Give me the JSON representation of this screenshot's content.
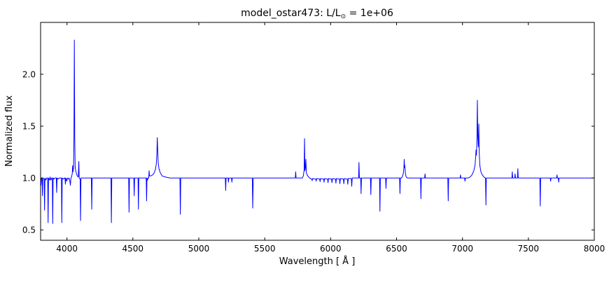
{
  "figure": {
    "title_prefix": "model_ostar473: L/L",
    "title_sun_symbol": "⊙",
    "title_suffix": " = 1e+06",
    "xlabel": "Wavelength [ Å ]",
    "ylabel": "Normalized flux"
  },
  "chart_data": {
    "type": "line",
    "title": "model_ostar473: L/L⊙ = 1e+06",
    "xlabel": "Wavelength [ Å ]",
    "ylabel": "Normalized flux",
    "xlim": [
      3800,
      8000
    ],
    "ylim": [
      0.4,
      2.5
    ],
    "x_ticks": [
      4000,
      4500,
      5000,
      5500,
      6000,
      6500,
      7000,
      7500,
      8000
    ],
    "y_ticks": [
      0.5,
      1.0,
      1.5,
      2.0
    ],
    "y_tick_labels": [
      "0.5",
      "1.0",
      "1.5",
      "2.0"
    ],
    "grid": false,
    "legend": false,
    "line_color": "#0000ff",
    "axis_color": "#000000",
    "background_color": "#ffffff",
    "series": [
      {
        "name": "model_ostar473 normalized spectrum",
        "points": [
          [
            3800,
            0.97
          ],
          [
            3803,
            0.93
          ],
          [
            3806,
            1
          ],
          [
            3811,
            0.99
          ],
          [
            3814,
            0.83
          ],
          [
            3817,
            1
          ],
          [
            3827,
            0.99
          ],
          [
            3830,
            0.69
          ],
          [
            3833,
            1
          ],
          [
            3840,
            0.98
          ],
          [
            3846,
            1
          ],
          [
            3854,
            1
          ],
          [
            3857,
            0.57
          ],
          [
            3860,
            1
          ],
          [
            3868,
            0.98
          ],
          [
            3872,
            1.01
          ],
          [
            3878,
            0.98
          ],
          [
            3884,
            1
          ],
          [
            3889,
            1
          ],
          [
            3892,
            0.56
          ],
          [
            3895,
            1
          ],
          [
            3902,
            0.99
          ],
          [
            3908,
            1
          ],
          [
            3919,
            1
          ],
          [
            3922,
            0.86
          ],
          [
            3925,
            1
          ],
          [
            3932,
            0.99
          ],
          [
            3940,
            1
          ],
          [
            3958,
            1
          ],
          [
            3961,
            0.57
          ],
          [
            3964,
            1
          ],
          [
            3972,
            0.99
          ],
          [
            3980,
            1
          ],
          [
            3985,
            1
          ],
          [
            3988,
            0.94
          ],
          [
            3991,
            1
          ],
          [
            3998,
            0.97
          ],
          [
            4003,
            1
          ],
          [
            4010,
            0.99
          ],
          [
            4016,
            1
          ],
          [
            4022,
            0.97
          ],
          [
            4026,
            0.93
          ],
          [
            4030,
            1
          ],
          [
            4034,
            1.01
          ],
          [
            4040,
            1.04
          ],
          [
            4043,
            1.12
          ],
          [
            4046,
            1.06
          ],
          [
            4050,
            1.1
          ],
          [
            4053,
            1.4
          ],
          [
            4056,
            2.33
          ],
          [
            4059,
            1.4
          ],
          [
            4062,
            1.12
          ],
          [
            4065,
            1.08
          ],
          [
            4070,
            1.05
          ],
          [
            4078,
            1.02
          ],
          [
            4086,
            1.01
          ],
          [
            4090,
            1.16
          ],
          [
            4093,
            1
          ],
          [
            4100,
            0.99
          ],
          [
            4103,
            0.59
          ],
          [
            4106,
            1
          ],
          [
            4115,
            1
          ],
          [
            4150,
            1
          ],
          [
            4185,
            1
          ],
          [
            4188,
            0.7
          ],
          [
            4191,
            1
          ],
          [
            4240,
            1
          ],
          [
            4300,
            1
          ],
          [
            4334,
            1
          ],
          [
            4337,
            0.57
          ],
          [
            4340,
            1
          ],
          [
            4400,
            1
          ],
          [
            4440,
            1
          ],
          [
            4468,
            1
          ],
          [
            4471,
            0.67
          ],
          [
            4474,
            1
          ],
          [
            4507,
            1
          ],
          [
            4510,
            0.83
          ],
          [
            4513,
            1
          ],
          [
            4539,
            1
          ],
          [
            4542,
            0.7
          ],
          [
            4545,
            1
          ],
          [
            4565,
            1
          ],
          [
            4585,
            1
          ],
          [
            4601,
            1
          ],
          [
            4604,
            0.78
          ],
          [
            4607,
            1
          ],
          [
            4611,
            0.98
          ],
          [
            4615,
            1
          ],
          [
            4620,
            1
          ],
          [
            4623,
            1.07
          ],
          [
            4626,
            1.02
          ],
          [
            4635,
            1.02
          ],
          [
            4650,
            1.03
          ],
          [
            4662,
            1.05
          ],
          [
            4672,
            1.09
          ],
          [
            4678,
            1.14
          ],
          [
            4682,
            1.24
          ],
          [
            4685,
            1.39
          ],
          [
            4688,
            1.28
          ],
          [
            4692,
            1.15
          ],
          [
            4698,
            1.09
          ],
          [
            4708,
            1.05
          ],
          [
            4722,
            1.02
          ],
          [
            4745,
            1.01
          ],
          [
            4780,
            1
          ],
          [
            4857,
            1
          ],
          [
            4860,
            0.65
          ],
          [
            4863,
            1
          ],
          [
            4950,
            1
          ],
          [
            5080,
            1
          ],
          [
            5201,
            1
          ],
          [
            5204,
            0.88
          ],
          [
            5207,
            1
          ],
          [
            5222,
            1
          ],
          [
            5225,
            0.96
          ],
          [
            5228,
            1
          ],
          [
            5248,
            1
          ],
          [
            5251,
            0.96
          ],
          [
            5254,
            1
          ],
          [
            5320,
            1
          ],
          [
            5406,
            1
          ],
          [
            5409,
            0.71
          ],
          [
            5413,
            1
          ],
          [
            5520,
            1
          ],
          [
            5650,
            1
          ],
          [
            5732,
            1
          ],
          [
            5735,
            1.06
          ],
          [
            5738,
            1
          ],
          [
            5785,
            1
          ],
          [
            5793,
            1.02
          ],
          [
            5799,
            1.08
          ],
          [
            5802,
            1.38
          ],
          [
            5805,
            1.07
          ],
          [
            5809,
            1.1
          ],
          [
            5812,
            1.18
          ],
          [
            5816,
            1.05
          ],
          [
            5822,
            1.03
          ],
          [
            5832,
            1.01
          ],
          [
            5846,
            0.995
          ],
          [
            5857,
            0.99
          ],
          [
            5860,
            0.975
          ],
          [
            5864,
            0.995
          ],
          [
            5887,
            0.99
          ],
          [
            5890,
            0.97
          ],
          [
            5894,
            0.995
          ],
          [
            5917,
            0.99
          ],
          [
            5920,
            0.965
          ],
          [
            5924,
            0.995
          ],
          [
            5947,
            0.99
          ],
          [
            5950,
            0.96
          ],
          [
            5954,
            0.995
          ],
          [
            5977,
            0.99
          ],
          [
            5980,
            0.955
          ],
          [
            5984,
            0.995
          ],
          [
            6007,
            0.99
          ],
          [
            6010,
            0.955
          ],
          [
            6014,
            0.995
          ],
          [
            6037,
            0.99
          ],
          [
            6040,
            0.95
          ],
          [
            6044,
            0.995
          ],
          [
            6067,
            0.99
          ],
          [
            6070,
            0.945
          ],
          [
            6074,
            0.995
          ],
          [
            6097,
            0.99
          ],
          [
            6100,
            0.945
          ],
          [
            6104,
            0.995
          ],
          [
            6127,
            0.99
          ],
          [
            6130,
            0.94
          ],
          [
            6134,
            0.995
          ],
          [
            6157,
            0.995
          ],
          [
            6160,
            0.92
          ],
          [
            6164,
            1
          ],
          [
            6185,
            1
          ],
          [
            6212,
            1
          ],
          [
            6215,
            1.15
          ],
          [
            6218,
            1
          ],
          [
            6228,
            1
          ],
          [
            6231,
            0.85
          ],
          [
            6234,
            1
          ],
          [
            6280,
            1
          ],
          [
            6302,
            1
          ],
          [
            6305,
            0.84
          ],
          [
            6308,
            1
          ],
          [
            6350,
            1
          ],
          [
            6371,
            1
          ],
          [
            6374,
            0.68
          ],
          [
            6377,
            1
          ],
          [
            6417,
            1
          ],
          [
            6420,
            0.9
          ],
          [
            6423,
            1
          ],
          [
            6480,
            1
          ],
          [
            6523,
            1
          ],
          [
            6526,
            0.85
          ],
          [
            6529,
            1
          ],
          [
            6538,
            1
          ],
          [
            6546,
            1.02
          ],
          [
            6552,
            1.05
          ],
          [
            6556,
            1.1
          ],
          [
            6558,
            1.18
          ],
          [
            6561,
            1.1
          ],
          [
            6563,
            1.12
          ],
          [
            6567,
            1.05
          ],
          [
            6573,
            1.01
          ],
          [
            6582,
            1
          ],
          [
            6640,
            1
          ],
          [
            6682,
            1
          ],
          [
            6685,
            0.8
          ],
          [
            6688,
            1
          ],
          [
            6713,
            1
          ],
          [
            6716,
            1.04
          ],
          [
            6719,
            1
          ],
          [
            6800,
            1
          ],
          [
            6889,
            1
          ],
          [
            6892,
            0.78
          ],
          [
            6895,
            1
          ],
          [
            6960,
            1
          ],
          [
            6982,
            1
          ],
          [
            6985,
            1.03
          ],
          [
            6988,
            1
          ],
          [
            7016,
            1
          ],
          [
            7019,
            0.97
          ],
          [
            7022,
            1
          ],
          [
            7042,
            1
          ],
          [
            7058,
            1.01
          ],
          [
            7072,
            1.03
          ],
          [
            7086,
            1.07
          ],
          [
            7095,
            1.12
          ],
          [
            7100,
            1.2
          ],
          [
            7103,
            1.27
          ],
          [
            7106,
            1.22
          ],
          [
            7110,
            1.38
          ],
          [
            7113,
            1.75
          ],
          [
            7116,
            1.42
          ],
          [
            7120,
            1.3
          ],
          [
            7124,
            1.52
          ],
          [
            7127,
            1.25
          ],
          [
            7132,
            1.12
          ],
          [
            7140,
            1.06
          ],
          [
            7150,
            1.03
          ],
          [
            7163,
            1.01
          ],
          [
            7172,
            1
          ],
          [
            7175,
            1
          ],
          [
            7178,
            0.74
          ],
          [
            7181,
            1
          ],
          [
            7280,
            1
          ],
          [
            7375,
            1
          ],
          [
            7378,
            1.06
          ],
          [
            7381,
            1
          ],
          [
            7396,
            1
          ],
          [
            7399,
            1.04
          ],
          [
            7402,
            1
          ],
          [
            7417,
            1
          ],
          [
            7420,
            1.09
          ],
          [
            7423,
            1
          ],
          [
            7500,
            1
          ],
          [
            7587,
            1
          ],
          [
            7590,
            0.73
          ],
          [
            7593,
            1
          ],
          [
            7666,
            1
          ],
          [
            7669,
            0.97
          ],
          [
            7672,
            1
          ],
          [
            7714,
            1
          ],
          [
            7717,
            1.03
          ],
          [
            7720,
            1
          ],
          [
            7727,
            1
          ],
          [
            7730,
            0.96
          ],
          [
            7733,
            1
          ],
          [
            7820,
            1
          ],
          [
            7920,
            1
          ],
          [
            8000,
            1
          ]
        ]
      }
    ]
  }
}
